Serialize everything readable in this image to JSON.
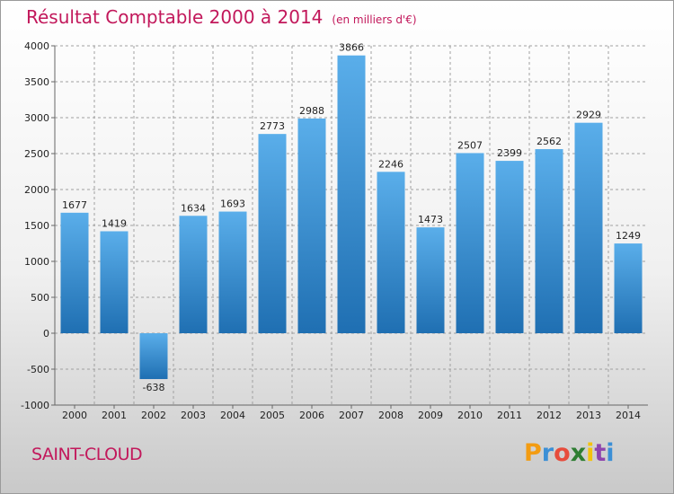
{
  "title": "Résultat Comptable 2000 à 2014",
  "subtitle": "(en milliers d'€)",
  "city": "SAINT-CLOUD",
  "logo": {
    "letters": [
      "P",
      "r",
      "o",
      "x",
      "i",
      "t",
      "i"
    ],
    "colors": [
      "#f39c12",
      "#3b8fd6",
      "#e74c3c",
      "#2e7d32",
      "#f4c20d",
      "#8e44ad",
      "#3b8fd6"
    ]
  },
  "colors": {
    "bar_top": "#5aaeea",
    "bar_bottom": "#1f6fb2",
    "grid": "#a0a0a0",
    "accent": "#c2185b"
  },
  "chart_data": {
    "type": "bar",
    "title": "Résultat Comptable 2000 à 2014",
    "subtitle": "(en milliers d'€)",
    "categories": [
      "2000",
      "2001",
      "2002",
      "2003",
      "2004",
      "2005",
      "2006",
      "2007",
      "2008",
      "2009",
      "2010",
      "2011",
      "2012",
      "2013",
      "2014"
    ],
    "values": [
      1677,
      1419,
      -638,
      1634,
      1693,
      2773,
      2988,
      3866,
      2246,
      1473,
      2507,
      2399,
      2562,
      2929,
      1249
    ],
    "ylim": [
      -1000,
      4000
    ],
    "yticks": [
      -1000,
      -500,
      0,
      500,
      1000,
      1500,
      2000,
      2500,
      3000,
      3500,
      4000
    ],
    "grid": "horizontal-dashed",
    "xlabel": "",
    "ylabel": ""
  }
}
